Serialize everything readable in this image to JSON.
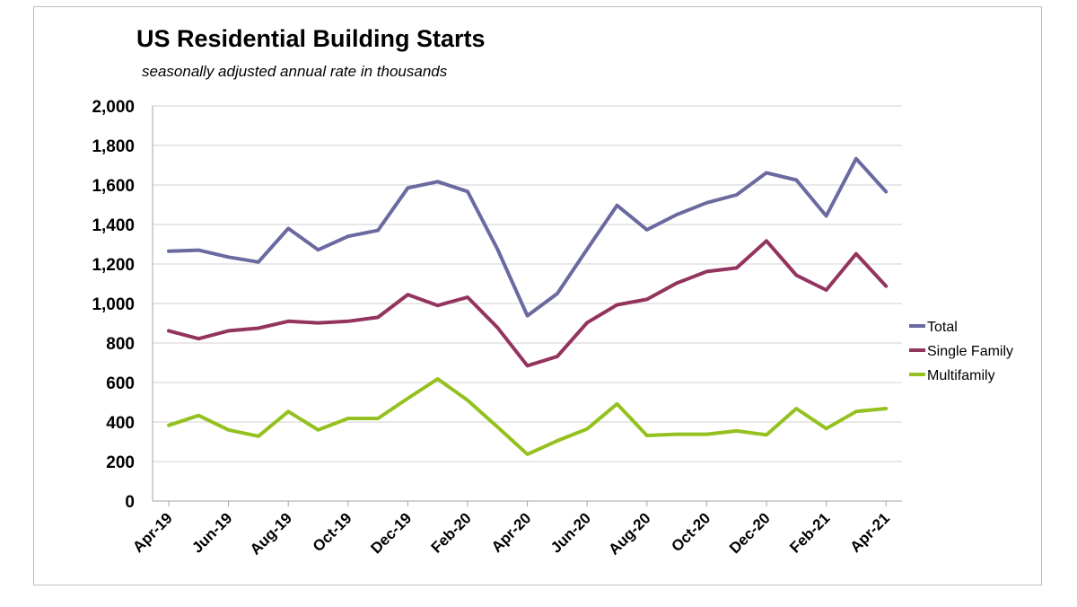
{
  "chart_data": {
    "type": "line",
    "title": "US Residential Building Starts",
    "subtitle": "seasonally adjusted annual rate in thousands",
    "xlabel": "",
    "ylabel": "",
    "ylim": [
      0,
      2000
    ],
    "y_ticks": [
      0,
      200,
      400,
      600,
      800,
      1000,
      1200,
      1400,
      1600,
      1800,
      2000
    ],
    "y_tick_labels": [
      "0",
      "200",
      "400",
      "600",
      "800",
      "1,000",
      "1,200",
      "1,400",
      "1,600",
      "1,800",
      "2,000"
    ],
    "x": [
      "Apr-19",
      "May-19",
      "Jun-19",
      "Jul-19",
      "Aug-19",
      "Sep-19",
      "Oct-19",
      "Nov-19",
      "Dec-19",
      "Jan-20",
      "Feb-20",
      "Mar-20",
      "Apr-20",
      "May-20",
      "Jun-20",
      "Jul-20",
      "Aug-20",
      "Sep-20",
      "Oct-20",
      "Nov-20",
      "Dec-20",
      "Jan-21",
      "Feb-21",
      "Mar-21",
      "Apr-21"
    ],
    "x_tick_labels": [
      "Apr-19",
      "Jun-19",
      "Aug-19",
      "Oct-19",
      "Dec-19",
      "Feb-20",
      "Apr-20",
      "Jun-20",
      "Aug-20",
      "Oct-20",
      "Dec-20",
      "Feb-21",
      "Apr-21"
    ],
    "grid": "horizontal",
    "legend_position": "right",
    "series": [
      {
        "name": "Total",
        "color": "#6a6aa1",
        "values": [
          1265,
          1270,
          1235,
          1210,
          1380,
          1272,
          1340,
          1370,
          1585,
          1617,
          1567,
          1275,
          938,
          1050,
          1275,
          1497,
          1373,
          1450,
          1510,
          1550,
          1662,
          1625,
          1443,
          1733,
          1566
        ]
      },
      {
        "name": "Single Family",
        "color": "#93345f",
        "values": [
          862,
          822,
          862,
          875,
          910,
          902,
          910,
          930,
          1045,
          990,
          1032,
          878,
          685,
          732,
          903,
          993,
          1021,
          1103,
          1162,
          1180,
          1317,
          1143,
          1068,
          1252,
          1088
        ]
      },
      {
        "name": "Multifamily",
        "color": "#94c11f",
        "values": [
          383,
          433,
          360,
          328,
          453,
          360,
          418,
          418,
          520,
          618,
          510,
          375,
          237,
          305,
          365,
          492,
          332,
          338,
          338,
          355,
          335,
          468,
          367,
          453,
          468
        ]
      }
    ]
  }
}
